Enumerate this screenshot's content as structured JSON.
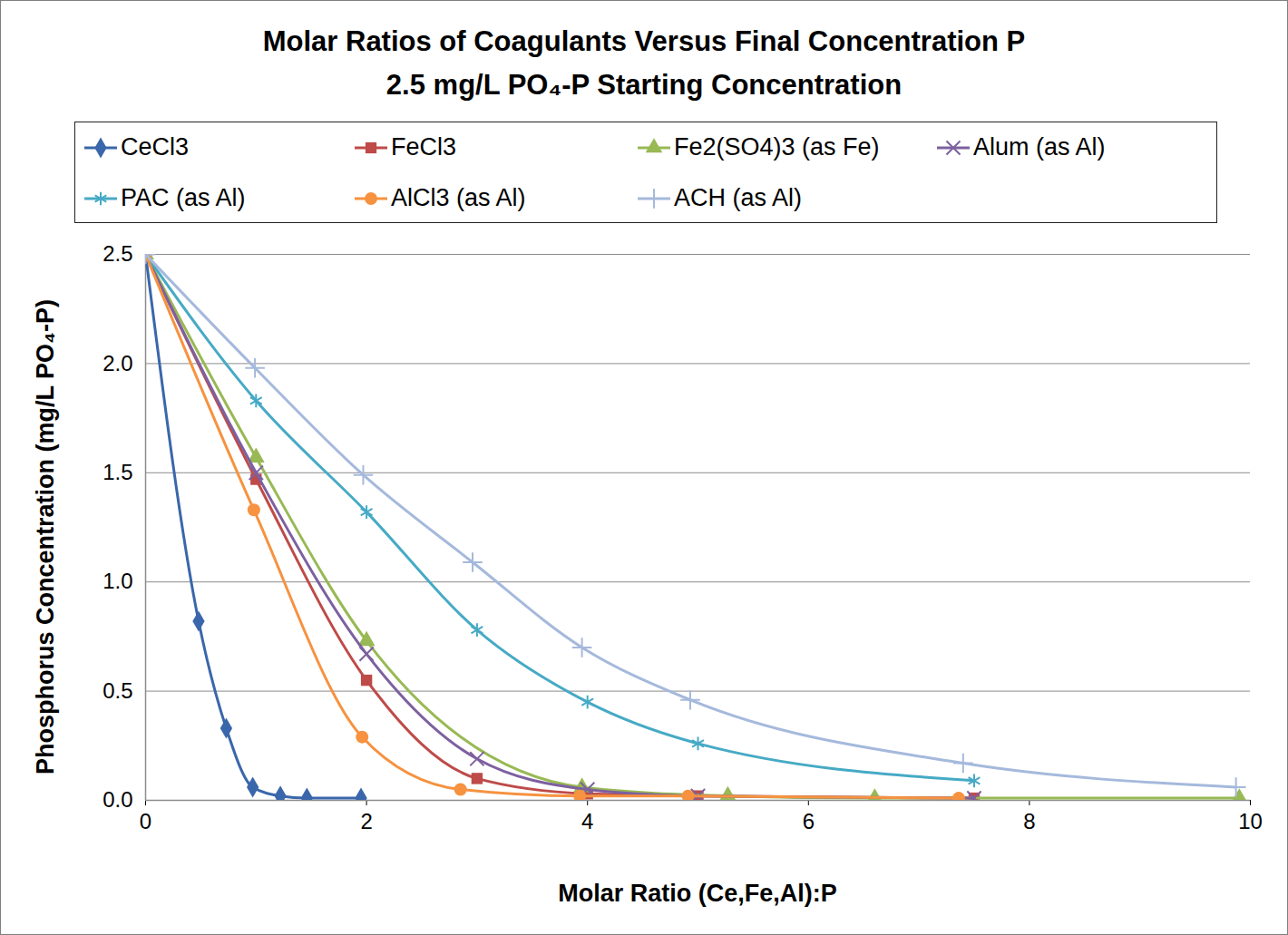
{
  "chart_data": {
    "type": "line",
    "title": "Molar Ratios of Coagulants Versus Final Concentration P",
    "subtitle": "2.5 mg/L PO₄-P Starting Concentration",
    "x_label": "Molar Ratio (Ce,Fe,Al):P",
    "y_label": "Phosphorus Concentration (mg/L PO₄-P)",
    "xlim": [
      0,
      10
    ],
    "xticks": [
      0,
      2,
      4,
      6,
      8,
      10
    ],
    "ylim": [
      0,
      2.5
    ],
    "yticks": [
      {
        "value": 0,
        "label": "0.0"
      },
      0.5,
      {
        "value": 1,
        "label": "1.0"
      },
      1.5,
      {
        "value": 2,
        "label": "2.0"
      },
      2.5
    ],
    "grid": "y",
    "legend": "top",
    "series": [
      {
        "name": "CeCl3",
        "color": "#3A67AB",
        "marker": "diamond",
        "x": [
          0,
          0.48,
          0.73,
          0.97,
          1.22,
          1.46,
          1.95
        ],
        "values": [
          2.5,
          0.82,
          0.33,
          0.06,
          0.02,
          0.01,
          0.01
        ]
      },
      {
        "name": "FeCl3",
        "color": "#BE4B48",
        "marker": "square",
        "x": [
          0,
          1,
          2,
          3,
          4,
          5,
          7.5
        ],
        "values": [
          2.5,
          1.47,
          0.55,
          0.1,
          0.03,
          0.02,
          0.01
        ]
      },
      {
        "name": "Fe2(SO4)3 (as Fe)",
        "color": "#98B954",
        "marker": "triangle",
        "x": [
          0,
          1,
          2,
          3.95,
          5.27,
          6.6,
          9.9
        ],
        "values": [
          2.5,
          1.57,
          0.73,
          0.06,
          0.02,
          0.01,
          0.01
        ]
      },
      {
        "name": "Alum (as Al)",
        "color": "#7D60A0",
        "marker": "x",
        "x": [
          0,
          1,
          2,
          3,
          4,
          5,
          7.5
        ],
        "values": [
          2.5,
          1.5,
          0.67,
          0.19,
          0.05,
          0.02,
          0.01
        ]
      },
      {
        "name": "PAC (as Al)",
        "color": "#46AAC5",
        "marker": "star",
        "x": [
          0,
          1,
          2,
          3,
          4,
          5,
          7.5
        ],
        "values": [
          2.5,
          1.83,
          1.32,
          0.78,
          0.45,
          0.26,
          0.09
        ]
      },
      {
        "name": "AlCl3 (as Al)",
        "color": "#F69240",
        "marker": "circle",
        "x": [
          0,
          0.98,
          1.96,
          2.85,
          3.93,
          4.91,
          7.36
        ],
        "values": [
          2.5,
          1.33,
          0.29,
          0.05,
          0.02,
          0.02,
          0.01
        ]
      },
      {
        "name": "ACH (as Al)",
        "color": "#A5B9DC",
        "marker": "plus",
        "x": [
          0,
          0.99,
          1.97,
          2.96,
          3.95,
          4.93,
          7.4,
          9.87
        ],
        "values": [
          2.5,
          1.98,
          1.49,
          1.09,
          0.7,
          0.46,
          0.17,
          0.06
        ]
      }
    ]
  }
}
